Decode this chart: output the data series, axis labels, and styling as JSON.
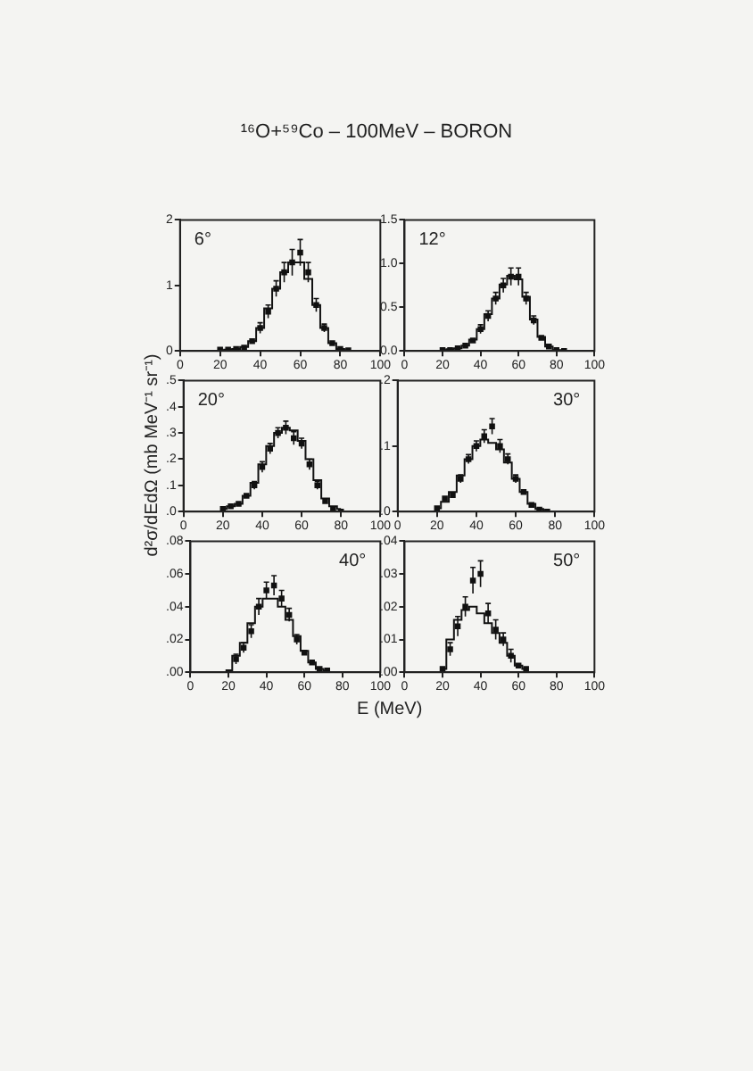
{
  "chart_data": [
    {
      "type": "scatter",
      "title": "¹⁶O+⁵⁹Co – 100MeV – BORON",
      "annotations": [
        "6°"
      ],
      "xlim": [
        0,
        100
      ],
      "xticks": [
        0,
        20,
        40,
        60,
        80,
        100
      ],
      "ylim": [
        0,
        2
      ],
      "yticks": [
        0,
        1,
        2
      ],
      "grid": false,
      "legend": false,
      "x": [
        20,
        24,
        28,
        32,
        36,
        40,
        44,
        48,
        52,
        56,
        60,
        64,
        68,
        72,
        76,
        80,
        84
      ],
      "series": [
        {
          "marker": "square",
          "color": "#111111",
          "values": [
            0.02,
            0.02,
            0.03,
            0.05,
            0.15,
            0.35,
            0.6,
            0.95,
            1.2,
            1.35,
            1.5,
            1.2,
            0.7,
            0.35,
            0.12,
            0.03,
            0.01
          ],
          "errors": [
            null,
            null,
            null,
            null,
            null,
            0.08,
            0.1,
            0.12,
            0.15,
            0.2,
            0.2,
            0.15,
            0.1,
            0.06,
            null,
            null,
            null
          ]
        },
        {
          "type": "step",
          "color": "#111111",
          "values": [
            0.01,
            0.02,
            0.03,
            0.06,
            0.15,
            0.35,
            0.65,
            0.95,
            1.2,
            1.35,
            1.35,
            1.1,
            0.7,
            0.35,
            0.12,
            0.03,
            0.01
          ]
        }
      ]
    },
    {
      "type": "scatter",
      "annotations": [
        "12°"
      ],
      "xlim": [
        0,
        100
      ],
      "xticks": [
        0,
        20,
        40,
        60,
        80,
        100
      ],
      "ylim": [
        0,
        1.5
      ],
      "yticks": [
        {
          "value": 0,
          "label": "0.0"
        },
        {
          "value": 0.5,
          "label": "0.5"
        },
        {
          "value": 1,
          "label": "1.0"
        },
        {
          "value": 1.5,
          "label": "1.5"
        }
      ],
      "grid": false,
      "legend": false,
      "x": [
        20,
        24,
        28,
        32,
        36,
        40,
        44,
        48,
        52,
        56,
        60,
        64,
        68,
        72,
        76,
        80,
        84
      ],
      "series": [
        {
          "marker": "square",
          "color": "#111111",
          "values": [
            0.01,
            0.01,
            0.03,
            0.06,
            0.12,
            0.25,
            0.4,
            0.6,
            0.75,
            0.85,
            0.85,
            0.6,
            0.35,
            0.15,
            0.05,
            0.01,
            0
          ],
          "errors": [
            null,
            null,
            null,
            null,
            null,
            0.05,
            0.06,
            0.07,
            0.08,
            0.1,
            0.1,
            0.07,
            0.05,
            null,
            null,
            null,
            null
          ]
        },
        {
          "type": "step",
          "color": "#111111",
          "values": [
            0.01,
            0.02,
            0.03,
            0.06,
            0.13,
            0.25,
            0.42,
            0.6,
            0.76,
            0.86,
            0.82,
            0.62,
            0.36,
            0.16,
            0.05,
            0.01,
            0
          ]
        }
      ]
    },
    {
      "type": "scatter",
      "ylabel": "d²σ/dEdΩ (mb MeV⁻¹ sr⁻¹)",
      "annotations": [
        "20°"
      ],
      "xlim": [
        0,
        100
      ],
      "xticks": [
        0,
        20,
        40,
        60,
        80,
        100
      ],
      "ylim": [
        0,
        0.5
      ],
      "yticks": [
        {
          "value": 0,
          "label": ".0"
        },
        {
          "value": 0.1,
          "label": ".1"
        },
        {
          "value": 0.2,
          "label": ".2"
        },
        {
          "value": 0.3,
          "label": ".3"
        },
        {
          "value": 0.4,
          "label": ".4"
        },
        {
          "value": 0.5,
          "label": ".5"
        }
      ],
      "grid": false,
      "legend": false,
      "x": [
        20,
        24,
        28,
        32,
        36,
        40,
        44,
        48,
        52,
        56,
        60,
        64,
        68,
        72,
        76,
        80
      ],
      "series": [
        {
          "marker": "square",
          "color": "#111111",
          "values": [
            0.01,
            0.02,
            0.03,
            0.06,
            0.1,
            0.17,
            0.24,
            0.3,
            0.32,
            0.28,
            0.26,
            0.18,
            0.1,
            0.04,
            0.01,
            0
          ],
          "errors": [
            null,
            null,
            null,
            null,
            0.015,
            0.02,
            0.02,
            0.02,
            0.025,
            0.025,
            0.02,
            0.02,
            0.015,
            null,
            null,
            null
          ]
        },
        {
          "type": "step",
          "color": "#111111",
          "values": [
            0.01,
            0.02,
            0.03,
            0.06,
            0.11,
            0.18,
            0.25,
            0.3,
            0.32,
            0.31,
            0.27,
            0.2,
            0.12,
            0.05,
            0.02,
            0.01
          ]
        }
      ]
    },
    {
      "type": "scatter",
      "annotations": [
        "30°"
      ],
      "xlim": [
        0,
        100
      ],
      "xticks": [
        0,
        20,
        40,
        60,
        80,
        100
      ],
      "ylim": [
        0,
        0.2
      ],
      "yticks": [
        {
          "value": 0,
          "label": ".0"
        },
        {
          "value": 0.1,
          "label": ".1"
        },
        {
          "value": 0.2,
          "label": ".2"
        }
      ],
      "grid": false,
      "legend": false,
      "x": [
        20,
        24,
        28,
        32,
        36,
        40,
        44,
        48,
        52,
        56,
        60,
        64,
        68,
        72,
        76
      ],
      "series": [
        {
          "marker": "square",
          "color": "#111111",
          "values": [
            0.005,
            0.02,
            0.025,
            0.05,
            0.08,
            0.1,
            0.115,
            0.13,
            0.1,
            0.08,
            0.05,
            0.03,
            0.01,
            0.003,
            0
          ],
          "errors": [
            null,
            null,
            null,
            0.006,
            0.007,
            0.008,
            0.01,
            0.012,
            0.01,
            0.008,
            0.006,
            null,
            null,
            null,
            null
          ]
        },
        {
          "type": "step",
          "color": "#111111",
          "values": [
            0.005,
            0.015,
            0.03,
            0.055,
            0.08,
            0.1,
            0.11,
            0.105,
            0.095,
            0.075,
            0.05,
            0.03,
            0.012,
            0.004,
            0.001
          ]
        }
      ]
    },
    {
      "type": "scatter",
      "xlabel": "E (MeV)",
      "annotations": [
        "40°"
      ],
      "xlim": [
        0,
        100
      ],
      "xticks": [
        0,
        20,
        40,
        60,
        80,
        100
      ],
      "ylim": [
        0,
        0.08
      ],
      "yticks": [
        {
          "value": 0,
          "label": ".00"
        },
        {
          "value": 0.02,
          "label": ".02"
        },
        {
          "value": 0.04,
          "label": ".04"
        },
        {
          "value": 0.06,
          "label": ".06"
        },
        {
          "value": 0.08,
          "label": ".08"
        }
      ],
      "grid": false,
      "legend": false,
      "x": [
        20,
        24,
        28,
        32,
        36,
        40,
        44,
        48,
        52,
        56,
        60,
        64,
        68,
        72
      ],
      "series": [
        {
          "marker": "square",
          "color": "#111111",
          "values": [
            0,
            0.008,
            0.015,
            0.025,
            0.04,
            0.05,
            0.053,
            0.045,
            0.035,
            0.02,
            0.012,
            0.006,
            0.002,
            0.001
          ],
          "errors": [
            null,
            0.003,
            0.003,
            0.004,
            0.005,
            0.005,
            0.006,
            0.005,
            0.004,
            0.003,
            null,
            null,
            null,
            null
          ]
        },
        {
          "type": "step",
          "color": "#111111",
          "values": [
            0.001,
            0.01,
            0.018,
            0.03,
            0.04,
            0.045,
            0.045,
            0.04,
            0.032,
            0.022,
            0.013,
            0.006,
            0.002,
            0.001
          ]
        }
      ]
    },
    {
      "type": "scatter",
      "annotations": [
        "50°"
      ],
      "xlim": [
        0,
        100
      ],
      "xticks": [
        0,
        20,
        40,
        60,
        80,
        100
      ],
      "ylim": [
        0,
        0.04
      ],
      "yticks": [
        {
          "value": 0,
          "label": ".00"
        },
        {
          "value": 0.01,
          "label": ".01"
        },
        {
          "value": 0.02,
          "label": ".02"
        },
        {
          "value": 0.03,
          "label": ".03"
        },
        {
          "value": 0.04,
          "label": ".04"
        }
      ],
      "grid": false,
      "legend": false,
      "x": [
        20,
        24,
        28,
        32,
        36,
        40,
        44,
        48,
        52,
        56,
        60,
        64
      ],
      "series": [
        {
          "marker": "square",
          "color": "#111111",
          "values": [
            0.001,
            0.007,
            0.014,
            0.02,
            0.028,
            0.03,
            0.018,
            0.013,
            0.01,
            0.005,
            0.002,
            0.001
          ],
          "errors": [
            null,
            0.002,
            0.003,
            0.003,
            0.004,
            0.004,
            0.003,
            0.003,
            0.002,
            0.002,
            null,
            null
          ]
        },
        {
          "type": "step",
          "color": "#111111",
          "values": [
            0.001,
            0.01,
            0.016,
            0.019,
            0.02,
            0.018,
            0.015,
            0.012,
            0.009,
            0.005,
            0.002,
            0.001
          ]
        }
      ]
    }
  ]
}
